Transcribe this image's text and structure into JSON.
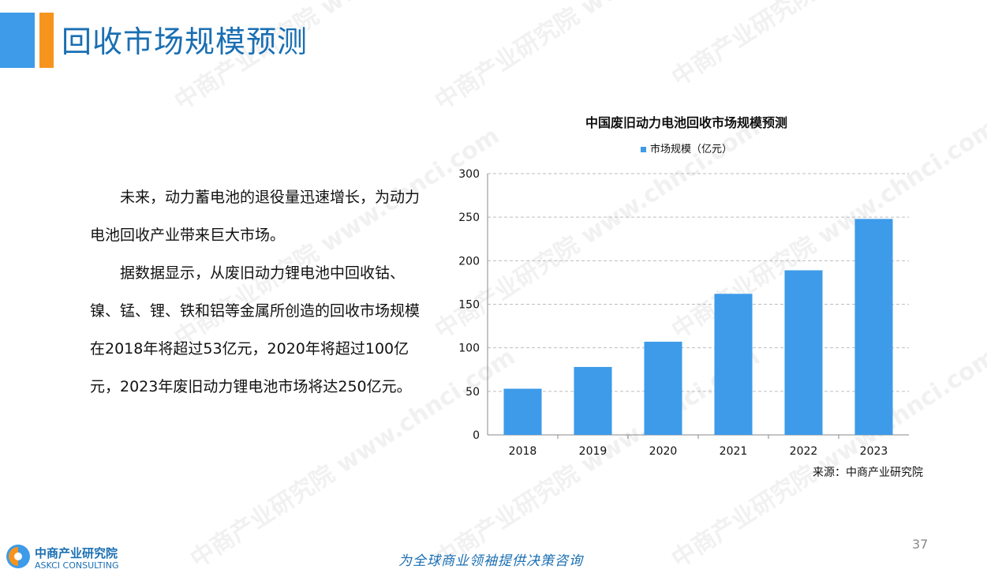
{
  "page": {
    "title": "回收市场规模预测",
    "page_number": "37",
    "slogan": "为全球商业领袖提供决策咨询",
    "source": "来源：中商产业研究院",
    "logo": {
      "name_cn": "中商产业研究院",
      "name_en": "ASKCI CONSULTING"
    },
    "watermark": "中商产业研究院 www.chnci.com"
  },
  "body": {
    "paragraphs": [
      "未来，动力蓄电池的退役量迅速增长，为动力电池回收产业带来巨大市场。",
      "据数据显示，从废旧动力锂电池中回收钴、镍、锰、锂、铁和铝等金属所创造的回收市场规模在2018年将超过53亿元，2020年将超过100亿元，2023年废旧动力锂电池市场将达250亿元。"
    ]
  },
  "colors": {
    "accent_blue": "#3d9be9",
    "title_blue": "#1a6fb3",
    "accent_orange": "#f7941d",
    "bar": "#3d9be9"
  },
  "chart_data": {
    "type": "bar",
    "title": "中国废旧动力电池回收市场规模预测",
    "categories": [
      "2018",
      "2019",
      "2020",
      "2021",
      "2022",
      "2023"
    ],
    "series": [
      {
        "name": "市场规模（亿元）",
        "values": [
          53,
          78,
          107,
          162,
          189,
          248
        ]
      }
    ],
    "xlabel": "",
    "ylabel": "",
    "ylim": [
      0,
      300
    ],
    "yticks": [
      0,
      50,
      100,
      150,
      200,
      250,
      300
    ],
    "grid": true,
    "legend": "top"
  }
}
